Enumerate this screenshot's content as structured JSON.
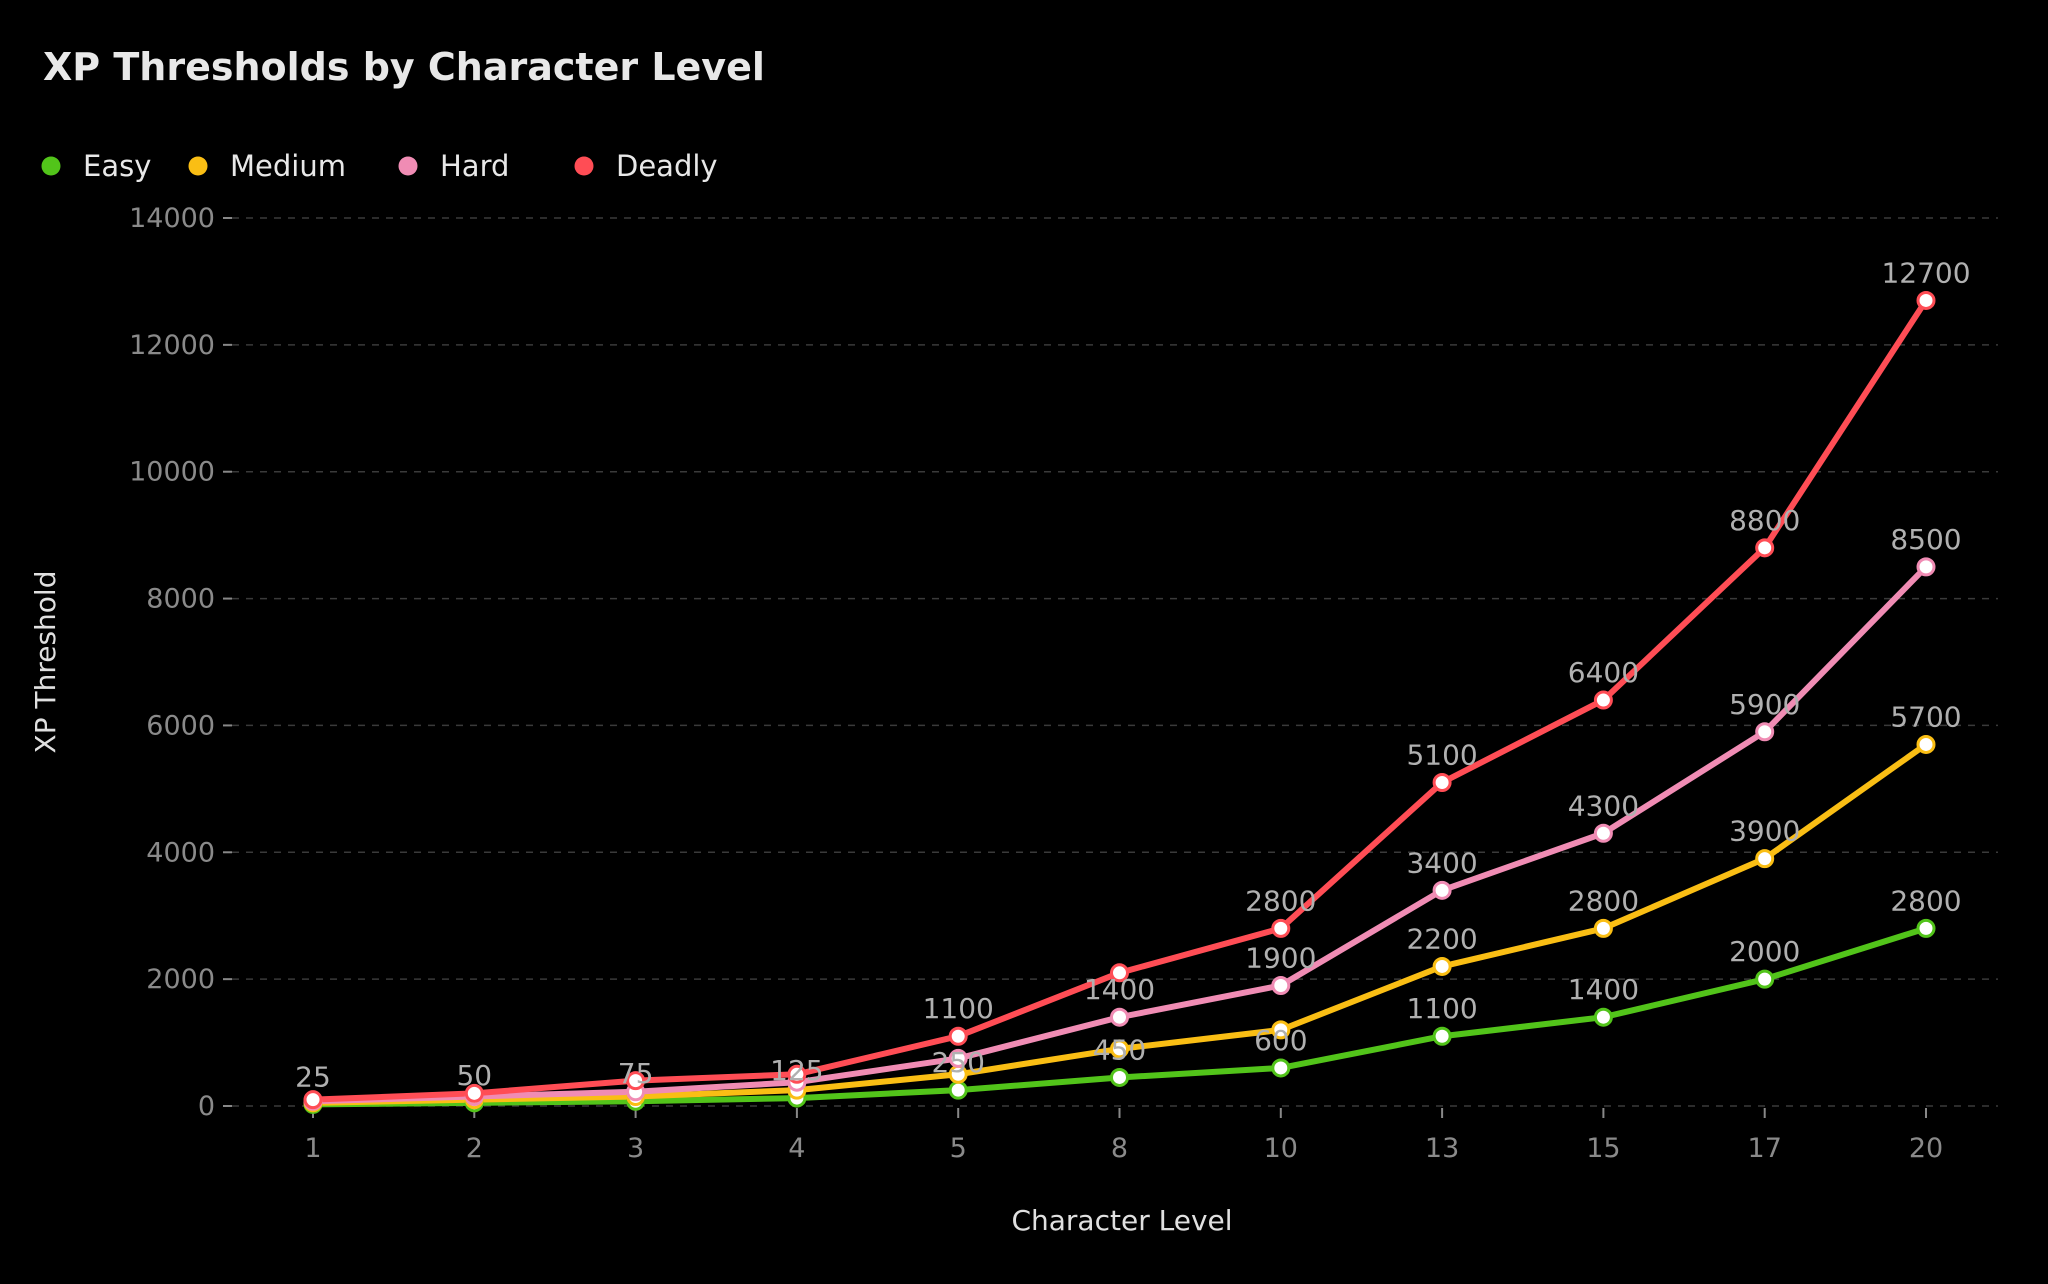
{
  "chart_data": {
    "type": "line",
    "title": "XP Thresholds by Character Level",
    "xlabel": "Character Level",
    "ylabel": "XP Threshold",
    "categories": [
      "1",
      "2",
      "3",
      "4",
      "5",
      "8",
      "10",
      "13",
      "15",
      "17",
      "20"
    ],
    "ylim": [
      0,
      14000
    ],
    "yticks": [
      "0",
      "2000",
      "4000",
      "6000",
      "8000",
      "10000",
      "12000",
      "14000"
    ],
    "grid": true,
    "legend_position": "top-left",
    "series": [
      {
        "name": "Easy",
        "color": "#52c41a",
        "values": [
          25,
          50,
          75,
          125,
          250,
          450,
          600,
          1100,
          1400,
          2000,
          2800
        ],
        "labels": [
          "25",
          "50",
          "75",
          "125",
          "250",
          "450",
          "600",
          "1100",
          "1400",
          "2000",
          "2800"
        ]
      },
      {
        "name": "Medium",
        "color": "#fabe14",
        "values": [
          50,
          100,
          150,
          250,
          500,
          900,
          1200,
          2200,
          2800,
          3900,
          5700
        ],
        "labels": [
          null,
          null,
          null,
          null,
          null,
          null,
          null,
          "2200",
          "2800",
          "3900",
          "5700"
        ]
      },
      {
        "name": "Hard",
        "color": "#f08cb4",
        "values": [
          75,
          150,
          225,
          375,
          750,
          1400,
          1900,
          3400,
          4300,
          5900,
          8500
        ],
        "labels": [
          null,
          null,
          null,
          null,
          null,
          "1400",
          "1900",
          "3400",
          "4300",
          "5900",
          "8500"
        ]
      },
      {
        "name": "Deadly",
        "color": "#ff4d55",
        "values": [
          100,
          200,
          400,
          500,
          1100,
          2100,
          2800,
          5100,
          6400,
          8800,
          12700
        ],
        "labels": [
          null,
          null,
          null,
          null,
          "1100",
          null,
          "2800",
          "5100",
          "6400",
          "8800",
          "12700"
        ]
      }
    ]
  }
}
